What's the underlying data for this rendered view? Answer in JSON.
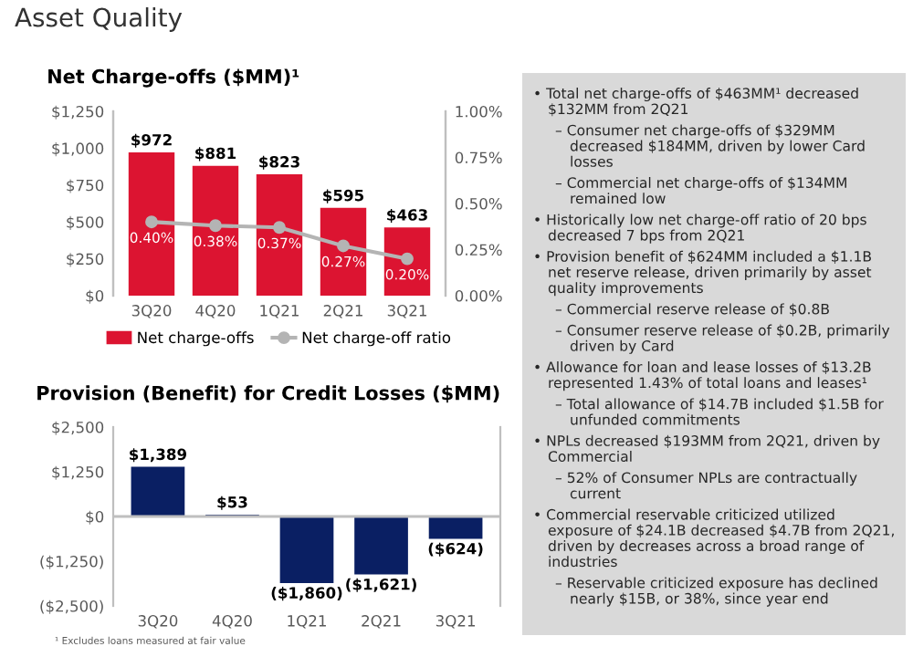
{
  "chart_data": [
    {
      "type": "bar",
      "title": "Net Charge-offs ($MM)¹",
      "annotations": [
        "Asset Quality"
      ],
      "categories": [
        "3Q20",
        "4Q20",
        "1Q21",
        "2Q21",
        "3Q21"
      ],
      "series": [
        {
          "name": "Net charge-offs",
          "type": "bar",
          "color": "#dc1431",
          "values": [
            972,
            881,
            823,
            595,
            463
          ],
          "value_labels": [
            "$972",
            "$881",
            "$823",
            "$595",
            "$463"
          ]
        },
        {
          "name": "Net charge-off ratio",
          "type": "line",
          "axis": "y2",
          "color": "#b4b4b4",
          "marker": "circle",
          "values": [
            0.4,
            0.38,
            0.37,
            0.27,
            0.2
          ],
          "value_labels": [
            "0.40%",
            "0.38%",
            "0.37%",
            "0.27%",
            "0.20%"
          ]
        }
      ],
      "ylim": [
        0,
        1250
      ],
      "yticks": [
        {
          "value": 0,
          "label": "$0"
        },
        {
          "value": 250,
          "label": "$250"
        },
        {
          "value": 500,
          "label": "$500"
        },
        {
          "value": 750,
          "label": "$750"
        },
        {
          "value": 1000,
          "label": "$1,000"
        },
        {
          "value": 1250,
          "label": "$1,250"
        }
      ],
      "y2lim": [
        0,
        1.0
      ],
      "y2ticks": [
        {
          "value": 0,
          "label": "0.00%"
        },
        {
          "value": 0.25,
          "label": "0.25%"
        },
        {
          "value": 0.5,
          "label": "0.50%"
        },
        {
          "value": 0.75,
          "label": "0.75%"
        },
        {
          "value": 1.0,
          "label": "1.00%"
        }
      ],
      "legend": "bottom",
      "grid": false
    },
    {
      "type": "bar",
      "title": "Provision (Benefit) for Credit Losses ($MM)",
      "annotations": [
        "¹ Excludes loans measured at fair value"
      ],
      "categories": [
        "3Q20",
        "4Q20",
        "1Q21",
        "2Q21",
        "3Q21"
      ],
      "series": [
        {
          "color": "#0a1f63",
          "values": [
            1389,
            53,
            -1860,
            -1621,
            -624
          ],
          "value_labels": [
            "$1,389",
            "$53",
            "($1,860)",
            "($1,621)",
            "($624)"
          ]
        }
      ],
      "ylim": [
        -2500,
        2500
      ],
      "yticks": [
        {
          "value": -2500,
          "label": "($2,500)"
        },
        {
          "value": -1250,
          "label": "($1,250)"
        },
        {
          "value": 0,
          "label": "$0"
        },
        {
          "value": 1250,
          "label": "$1,250"
        },
        {
          "value": 2500,
          "label": "$2,500"
        }
      ],
      "ref_lines": [
        {
          "axis": "y",
          "value": 0,
          "color": "#bfbfbf"
        }
      ],
      "grid": false
    },
    {
      "type": "other",
      "annotations": [
        "• Total net charge-offs of $463MM¹ decreased $132MM from 2Q21",
        "– Consumer net charge-offs of $329MM decreased $184MM, driven by lower Card losses",
        "– Commercial net charge-offs of $134MM remained low",
        "• Historically low net charge-off ratio of 20 bps decreased 7 bps from 2Q21",
        "• Provision benefit of $624MM included a $1.1B net reserve release, driven primarily by asset quality improvements",
        "– Commercial reserve release of $0.8B",
        "– Consumer reserve release of $0.2B, primarily driven by Card",
        "• Allowance for loan and lease losses of $13.2B represented 1.43% of total loans and leases¹",
        "– Total allowance of $14.7B included $1.5B for unfunded commitments",
        "• NPLs decreased $193MM from 2Q21, driven by Commercial",
        "– 52% of Consumer NPLs are contractually current",
        "• Commercial reservable criticized utilized exposure of $24.1B decreased $4.7B from 2Q21, driven by decreases across a broad range of industries",
        "– Reservable criticized exposure has declined nearly $15B, or 38%, since year end"
      ]
    }
  ]
}
